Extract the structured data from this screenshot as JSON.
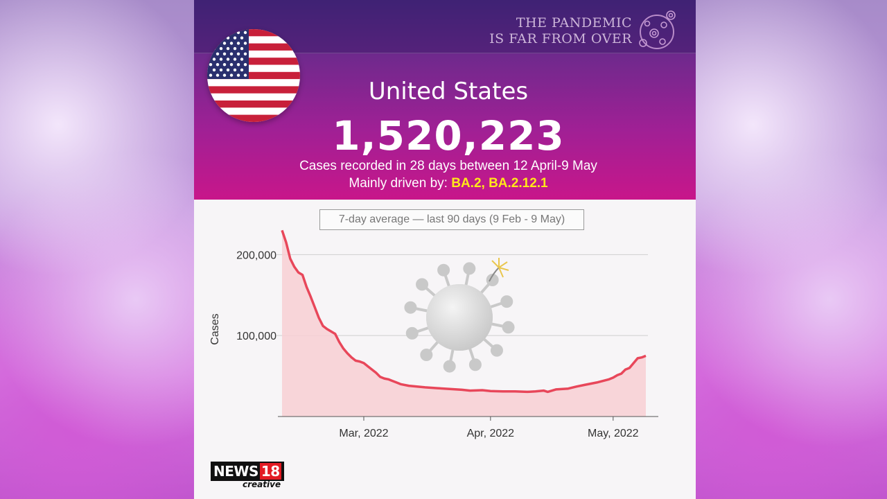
{
  "tagline": [
    "THE PANDEMIC",
    "IS FAR FROM OVER"
  ],
  "country": "United States",
  "total_cases": "1,520,223",
  "subtitle": "Cases recorded in 28 days between 12 April-9 May",
  "driven_prefix": "Mainly driven by:",
  "variants": "BA.2, BA.2.12.1",
  "logo": {
    "main": "NEWS",
    "number": "18",
    "sub": "creative"
  },
  "colors": {
    "line": "#e8475a",
    "fill": "#f8cfd3",
    "header_top": "#4c2a83",
    "header_bottom": "#c8168a",
    "variant": "#ffe81a"
  },
  "icons": [
    "us-flag-icon",
    "virus-icon",
    "virus-bomb-icon"
  ],
  "chart_data": {
    "type": "area",
    "title": "7-day average — last 90 days (9 Feb - 9 May)",
    "ylabel": "Cases",
    "xlabel": "",
    "ylim": [
      0,
      220000
    ],
    "yticks": [
      100000,
      200000
    ],
    "ytick_labels": [
      "100,000",
      "200,000"
    ],
    "grid": true,
    "x_start": "2022-02-09",
    "x_end": "2022-05-09",
    "xticks": [
      "2022-03-01",
      "2022-04-01",
      "2022-05-01"
    ],
    "xtick_labels": [
      "Mar, 2022",
      "Apr, 2022",
      "May, 2022"
    ],
    "points": [
      [
        "2022-02-09",
        230000
      ],
      [
        "2022-02-10",
        215000
      ],
      [
        "2022-02-11",
        195000
      ],
      [
        "2022-02-12",
        185000
      ],
      [
        "2022-02-13",
        178000
      ],
      [
        "2022-02-14",
        175000
      ],
      [
        "2022-02-15",
        160000
      ],
      [
        "2022-02-16",
        148000
      ],
      [
        "2022-02-17",
        135000
      ],
      [
        "2022-02-18",
        122000
      ],
      [
        "2022-02-19",
        112000
      ],
      [
        "2022-02-20",
        108000
      ],
      [
        "2022-02-21",
        105000
      ],
      [
        "2022-02-22",
        102000
      ],
      [
        "2022-02-23",
        92000
      ],
      [
        "2022-02-24",
        84000
      ],
      [
        "2022-02-25",
        78000
      ],
      [
        "2022-02-26",
        73000
      ],
      [
        "2022-02-27",
        69000
      ],
      [
        "2022-02-28",
        68000
      ],
      [
        "2022-03-01",
        66000
      ],
      [
        "2022-03-02",
        62000
      ],
      [
        "2022-03-03",
        58000
      ],
      [
        "2022-03-04",
        54000
      ],
      [
        "2022-03-05",
        49000
      ],
      [
        "2022-03-06",
        47000
      ],
      [
        "2022-03-07",
        46000
      ],
      [
        "2022-03-08",
        44000
      ],
      [
        "2022-03-09",
        42000
      ],
      [
        "2022-03-10",
        40000
      ],
      [
        "2022-03-12",
        38000
      ],
      [
        "2022-03-14",
        37000
      ],
      [
        "2022-03-16",
        36000
      ],
      [
        "2022-03-19",
        35000
      ],
      [
        "2022-03-22",
        34000
      ],
      [
        "2022-03-25",
        33000
      ],
      [
        "2022-03-27",
        32000
      ],
      [
        "2022-03-30",
        32500
      ],
      [
        "2022-04-01",
        31500
      ],
      [
        "2022-04-04",
        31000
      ],
      [
        "2022-04-07",
        31000
      ],
      [
        "2022-04-10",
        30500
      ],
      [
        "2022-04-12",
        31000
      ],
      [
        "2022-04-14",
        32000
      ],
      [
        "2022-04-15",
        30500
      ],
      [
        "2022-04-17",
        33500
      ],
      [
        "2022-04-20",
        34500
      ],
      [
        "2022-04-22",
        37000
      ],
      [
        "2022-04-24",
        39000
      ],
      [
        "2022-04-27",
        42000
      ],
      [
        "2022-04-30",
        46000
      ],
      [
        "2022-05-01",
        48000
      ],
      [
        "2022-05-02",
        51000
      ],
      [
        "2022-05-03",
        53000
      ],
      [
        "2022-05-04",
        58000
      ],
      [
        "2022-05-05",
        60000
      ],
      [
        "2022-05-06",
        66000
      ],
      [
        "2022-05-07",
        72000
      ],
      [
        "2022-05-08",
        73000
      ],
      [
        "2022-05-09",
        75000
      ]
    ]
  }
}
